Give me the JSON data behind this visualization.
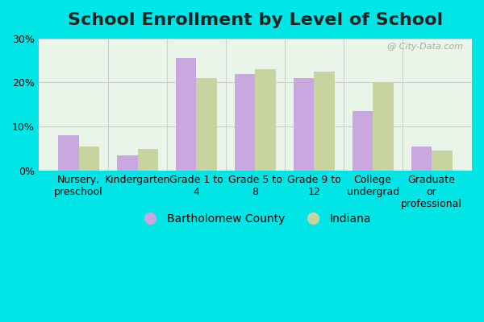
{
  "title": "School Enrollment by Level of School",
  "categories": [
    "Nursery,\npreschool",
    "Kindergarten",
    "Grade 1 to\n4",
    "Grade 5 to\n8",
    "Grade 9 to\n12",
    "College\nundergrad",
    "Graduate\nor\nprofessional"
  ],
  "bartholomew": [
    8.0,
    3.5,
    25.5,
    22.0,
    21.0,
    13.5,
    5.5
  ],
  "indiana": [
    5.5,
    5.0,
    21.0,
    23.0,
    22.5,
    20.0,
    4.5
  ],
  "bar_color_bartholomew": "#c9a8e0",
  "bar_color_indiana": "#c8d4a0",
  "background_color_outer": "#00e5e5",
  "background_color_inner": "#e8f5e8",
  "grid_color": "#d0d0d0",
  "ylim": [
    0,
    30
  ],
  "yticks": [
    0,
    10,
    20,
    30
  ],
  "ytick_labels": [
    "0%",
    "10%",
    "20%",
    "30%"
  ],
  "legend_label_1": "Bartholomew County",
  "legend_label_2": "Indiana",
  "title_fontsize": 16,
  "tick_fontsize": 9,
  "legend_fontsize": 10,
  "bar_width": 0.35,
  "watermark": "@ City-Data.com"
}
